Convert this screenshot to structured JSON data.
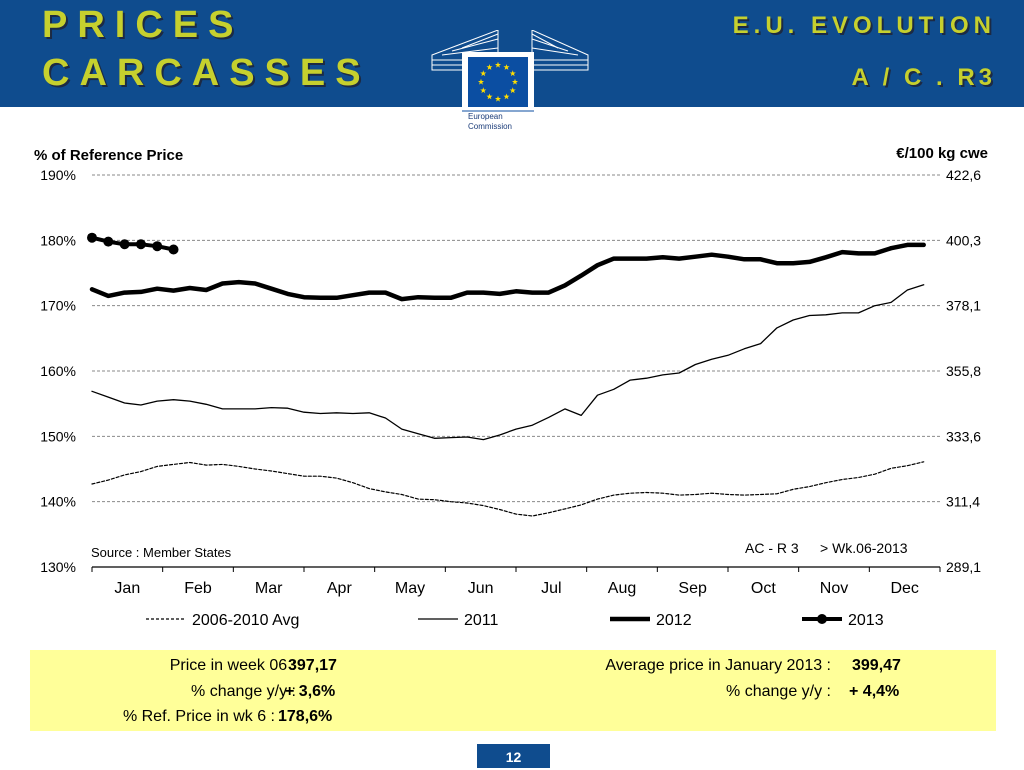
{
  "header": {
    "title_line1": "PRICES",
    "title_line2": "CARCASSES",
    "right_line1": "E.U.   EVOLUTION",
    "right_line2": "A / C . R3",
    "logo_text_line1": "European",
    "logo_text_line2": "Commission"
  },
  "chart_data": {
    "type": "line",
    "title": "",
    "ylabel_left": "% of Reference Price",
    "ylabel_right": "€/100  kg  cwe",
    "ylim": [
      130,
      190
    ],
    "y_ticks_left": [
      "190%",
      "180%",
      "170%",
      "160%",
      "150%",
      "140%",
      "130%"
    ],
    "y_ticks_right": [
      "422,6",
      "400,3",
      "378,1",
      "355,8",
      "333,6",
      "311,4",
      "289,1"
    ],
    "categories": [
      "Jan",
      "Feb",
      "Mar",
      "Apr",
      "May",
      "Jun",
      "Jul",
      "Aug",
      "Sep",
      "Oct",
      "Nov",
      "Dec"
    ],
    "x_unit": "week",
    "xlim": [
      1,
      53
    ],
    "grid": true,
    "source_note": "Source : Member States",
    "annotation_left": "AC - R 3",
    "annotation_right": "> Wk.06-2013",
    "legend_position": "bottom",
    "series": [
      {
        "name": "2006-2010 Avg",
        "style": "dashed",
        "x": [
          1,
          2,
          3,
          4,
          5,
          6,
          7,
          8,
          9,
          10,
          11,
          12,
          13,
          14,
          15,
          16,
          17,
          18,
          19,
          20,
          21,
          22,
          23,
          24,
          25,
          26,
          27,
          28,
          29,
          30,
          31,
          32,
          33,
          34,
          35,
          36,
          37,
          38,
          39,
          40,
          41,
          42,
          43,
          44,
          45,
          46,
          47,
          48,
          49,
          50,
          51,
          52
        ],
        "values": [
          142.7,
          143.3,
          144.1,
          144.6,
          145.4,
          145.7,
          146.0,
          145.6,
          145.7,
          145.4,
          145.0,
          144.7,
          144.3,
          143.9,
          143.9,
          143.6,
          142.9,
          142.0,
          141.5,
          141.1,
          140.4,
          140.3,
          140.0,
          139.8,
          139.4,
          138.8,
          138.1,
          137.8,
          138.3,
          138.9,
          139.5,
          140.4,
          141.0,
          141.3,
          141.4,
          141.3,
          141.0,
          141.1,
          141.3,
          141.1,
          141.0,
          141.1,
          141.2,
          141.9,
          142.3,
          142.9,
          143.4,
          143.7,
          144.2,
          145.1,
          145.5,
          146.1
        ]
      },
      {
        "name": "2011",
        "style": "thin",
        "x": [
          1,
          2,
          3,
          4,
          5,
          6,
          7,
          8,
          9,
          10,
          11,
          12,
          13,
          14,
          15,
          16,
          17,
          18,
          19,
          20,
          21,
          22,
          23,
          24,
          25,
          26,
          27,
          28,
          29,
          30,
          31,
          32,
          33,
          34,
          35,
          36,
          37,
          38,
          39,
          40,
          41,
          42,
          43,
          44,
          45,
          46,
          47,
          48,
          49,
          50,
          51,
          52
        ],
        "values": [
          156.9,
          156.0,
          155.1,
          154.8,
          155.4,
          155.6,
          155.4,
          154.9,
          154.2,
          154.2,
          154.2,
          154.4,
          154.3,
          153.7,
          153.5,
          153.6,
          153.5,
          153.6,
          152.8,
          151.1,
          150.4,
          149.7,
          149.8,
          149.9,
          149.5,
          150.2,
          151.1,
          151.7,
          152.9,
          154.2,
          153.2,
          156.3,
          157.2,
          158.6,
          158.9,
          159.4,
          159.7,
          161.0,
          161.8,
          162.4,
          163.4,
          164.2,
          166.6,
          167.8,
          168.5,
          168.6,
          168.9,
          168.9,
          170.0,
          170.5,
          172.4,
          173.2
        ]
      },
      {
        "name": "2012",
        "style": "thick",
        "x": [
          1,
          2,
          3,
          4,
          5,
          6,
          7,
          8,
          9,
          10,
          11,
          12,
          13,
          14,
          15,
          16,
          17,
          18,
          19,
          20,
          21,
          22,
          23,
          24,
          25,
          26,
          27,
          28,
          29,
          30,
          31,
          32,
          33,
          34,
          35,
          36,
          37,
          38,
          39,
          40,
          41,
          42,
          43,
          44,
          45,
          46,
          47,
          48,
          49,
          50,
          51,
          52
        ],
        "values": [
          172.5,
          171.5,
          172.0,
          172.1,
          172.6,
          172.3,
          172.7,
          172.4,
          173.4,
          173.6,
          173.4,
          172.6,
          171.8,
          171.3,
          171.2,
          171.2,
          171.6,
          172.0,
          172.0,
          171.0,
          171.3,
          171.2,
          171.2,
          172.0,
          172.0,
          171.8,
          172.2,
          172.0,
          172.0,
          173.1,
          174.6,
          176.2,
          177.2,
          177.2,
          177.2,
          177.4,
          177.2,
          177.5,
          177.8,
          177.5,
          177.1,
          177.1,
          176.5,
          176.5,
          176.7,
          177.4,
          178.2,
          178.0,
          178.0,
          178.8,
          179.3,
          179.3
        ]
      },
      {
        "name": "2013",
        "style": "marker",
        "x": [
          1,
          2,
          3,
          4,
          5,
          6
        ],
        "values": [
          180.4,
          179.8,
          179.4,
          179.4,
          179.1,
          178.6
        ]
      }
    ]
  },
  "info": {
    "price_week_label": "Price in week 06 :",
    "price_week_value": "397,17",
    "change_yy_label_left": "% change y/y :",
    "change_yy_value_left": "+ 3,6%",
    "ref_price_label": "% Ref. Price in wk 6 :",
    "ref_price_value": "178,6%",
    "avg_price_label": "Average price in January 2013 :",
    "avg_price_value": "399,47",
    "change_yy_label_right": "% change y/y :",
    "change_yy_value_right": "+ 4,4%"
  },
  "page_number": "12",
  "colors": {
    "header_bg": "#0f4c8e",
    "title_green": "#c6d02e",
    "info_bg": "#ffff99",
    "eu_star_yellow": "#ffdd00",
    "eu_flag_blue": "#0b4ea2"
  }
}
